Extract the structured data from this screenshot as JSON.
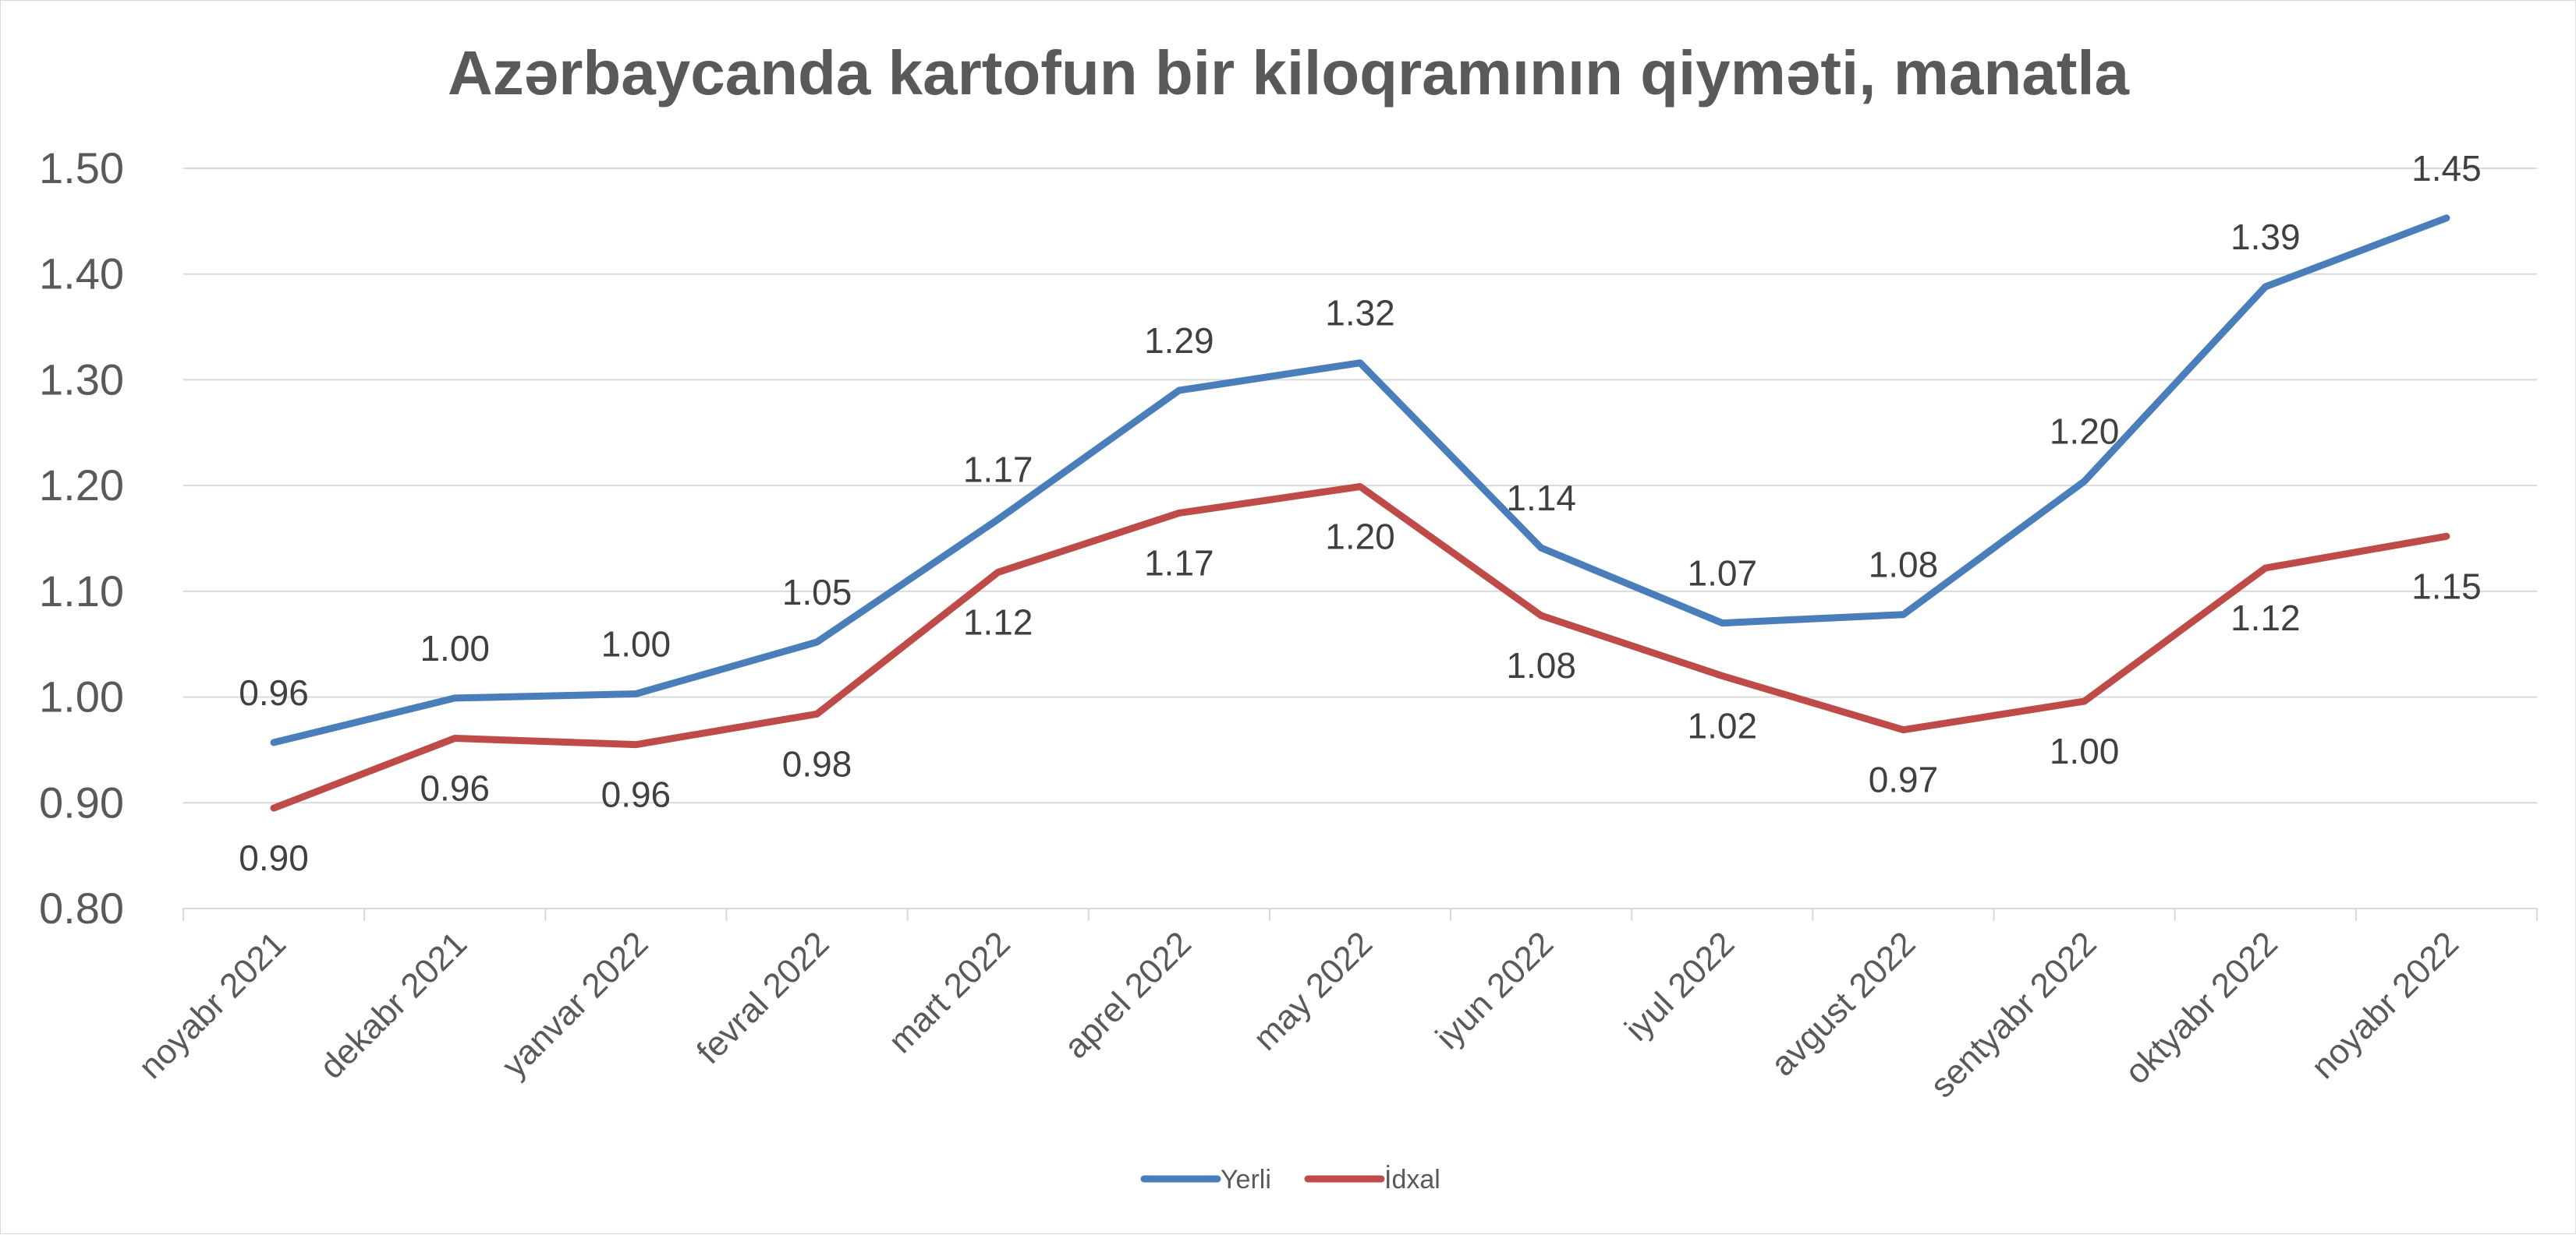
{
  "chart_data": {
    "type": "line",
    "title": "Azərbaycanda kartofun bir kiloqramının qiyməti, manatla",
    "xlabel": "",
    "ylabel": "",
    "categories": [
      "noyabr 2021",
      "dekabr 2021",
      "yanvar 2022",
      "fevral 2022",
      "mart 2022",
      "aprel 2022",
      "may 2022",
      "iyun 2022",
      "iyul 2022",
      "avgust 2022",
      "sentyabr 2022",
      "oktyabr 2022",
      "noyabr 2022"
    ],
    "ylim": [
      0.8,
      1.5
    ],
    "yticks": [
      "1.50",
      "1.40",
      "1.30",
      "1.20",
      "1.10",
      "1.00",
      "0.90",
      "0.80"
    ],
    "grid": true,
    "legend_position": "bottom",
    "series": [
      {
        "name": "Yerli",
        "color": "#4a7ebb",
        "values": [
          0.957,
          0.999,
          1.003,
          1.052,
          1.168,
          1.29,
          1.316,
          1.141,
          1.07,
          1.078,
          1.204,
          1.388,
          1.453
        ],
        "labels": [
          "0.96",
          "1.00",
          "1.00",
          "1.05",
          "1.17",
          "1.29",
          "1.32",
          "1.14",
          "1.07",
          "1.08",
          "1.20",
          "1.39",
          "1.45"
        ],
        "label_pos": "above"
      },
      {
        "name": "İdxal",
        "color": "#be4b48",
        "values": [
          0.895,
          0.961,
          0.955,
          0.984,
          1.118,
          1.174,
          1.199,
          1.077,
          1.02,
          0.969,
          0.996,
          1.122,
          1.152
        ],
        "labels": [
          "0.90",
          "0.96",
          "0.96",
          "0.98",
          "1.12",
          "1.17",
          "1.20",
          "1.08",
          "1.02",
          "0.97",
          "1.00",
          "1.12",
          "1.15"
        ],
        "label_pos": "below"
      }
    ]
  }
}
